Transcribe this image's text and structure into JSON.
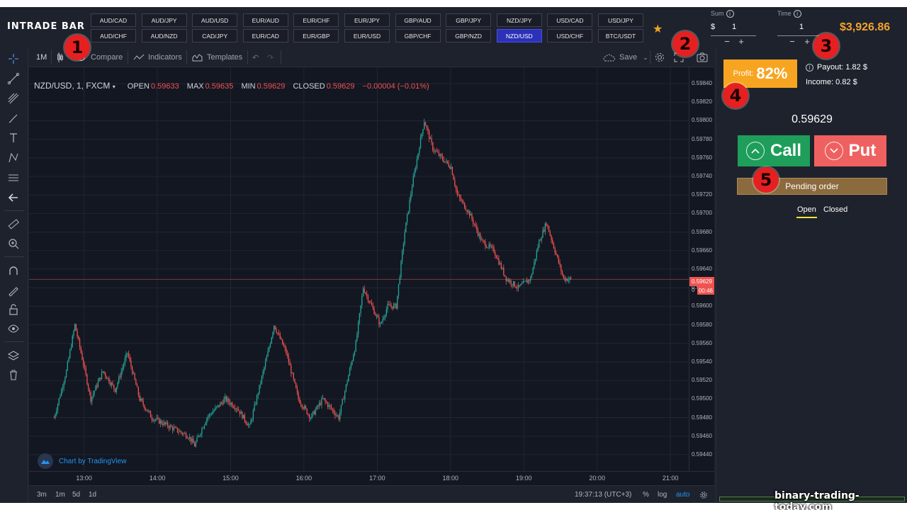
{
  "logo_text": "INTRADE BAR",
  "pairs": [
    {
      "label": "AUD/CAD",
      "active": false
    },
    {
      "label": "AUD/JPY",
      "active": false
    },
    {
      "label": "AUD/USD",
      "active": false
    },
    {
      "label": "EUR/AUD",
      "active": false
    },
    {
      "label": "EUR/CHF",
      "active": false
    },
    {
      "label": "EUR/JPY",
      "active": false
    },
    {
      "label": "GBP/AUD",
      "active": false
    },
    {
      "label": "GBP/JPY",
      "active": false
    },
    {
      "label": "NZD/JPY",
      "active": false
    },
    {
      "label": "USD/CAD",
      "active": false
    },
    {
      "label": "USD/JPY",
      "active": false
    },
    {
      "label": "AUD/CHF",
      "active": false
    },
    {
      "label": "AUD/NZD",
      "active": false
    },
    {
      "label": "CAD/JPY",
      "active": false
    },
    {
      "label": "EUR/CAD",
      "active": false
    },
    {
      "label": "EUR/GBP",
      "active": false
    },
    {
      "label": "EUR/USD",
      "active": false
    },
    {
      "label": "GBP/CHF",
      "active": false
    },
    {
      "label": "GBP/NZD",
      "active": false
    },
    {
      "label": "NZD/USD",
      "active": true
    },
    {
      "label": "USD/CHF",
      "active": false
    },
    {
      "label": "BTC/USDT",
      "active": false
    }
  ],
  "sum": {
    "label": "Sum",
    "currency": "$",
    "value": "1",
    "minus": "−",
    "plus": "+"
  },
  "time": {
    "label": "Time",
    "value": "1",
    "minus": "−",
    "plus": "+"
  },
  "balance": "$3,926.86",
  "toolbar": {
    "interval": "1M",
    "compare": "Compare",
    "indicators": "Indicators",
    "templates": "Templates",
    "save": "Save"
  },
  "legend": {
    "symbol": "NZD/USD, 1, FXCM",
    "open_label": "OPEN",
    "open": "0.59633",
    "max_label": "MAX",
    "max": "0.59635",
    "min_label": "MIN",
    "min": "0.59629",
    "closed_label": "CLOSED",
    "closed": "0.59629",
    "change": "−0.00004 (−0.01%)"
  },
  "watermark": "Chart by TradingView",
  "current_price_label": "0.59629",
  "countdown": "00:46",
  "countdown_prefix": "0",
  "bottom": {
    "ranges": [
      "3m",
      "1m",
      "5d",
      "1d"
    ],
    "clock": "19:37:13 (UTC+3)",
    "percent": "%",
    "log": "log",
    "auto": "auto"
  },
  "chart_data": {
    "type": "candlestick",
    "symbol": "NZD/USD",
    "interval": "1",
    "source": "FXCM",
    "y_ticks": [
      "0.59840",
      "0.59820",
      "0.59800",
      "0.59780",
      "0.59760",
      "0.59740",
      "0.59720",
      "0.59700",
      "0.59680",
      "0.59660",
      "0.59640",
      "0.59620",
      "0.59600",
      "0.59580",
      "0.59560",
      "0.59540",
      "0.59520",
      "0.59500",
      "0.59480",
      "0.59460",
      "0.59440"
    ],
    "x_ticks": [
      "13:00",
      "14:00",
      "15:00",
      "16:00",
      "17:00",
      "18:00",
      "19:00",
      "20:00",
      "21:00"
    ],
    "ylim": [
      0.5943,
      0.5985
    ],
    "current_price": 0.59629,
    "close_path": [
      [
        "12:35",
        0.5948
      ],
      [
        "12:45",
        0.5953
      ],
      [
        "12:52",
        0.5958
      ],
      [
        "12:57",
        0.5955
      ],
      [
        "13:05",
        0.595
      ],
      [
        "13:15",
        0.5953
      ],
      [
        "13:25",
        0.5951
      ],
      [
        "13:35",
        0.5955
      ],
      [
        "13:45",
        0.595
      ],
      [
        "13:55",
        0.5948
      ],
      [
        "14:10",
        0.5947
      ],
      [
        "14:25",
        0.5946
      ],
      [
        "14:30",
        0.5945
      ],
      [
        "14:40",
        0.5948
      ],
      [
        "14:55",
        0.595
      ],
      [
        "15:05",
        0.5949
      ],
      [
        "15:15",
        0.5947
      ],
      [
        "15:30",
        0.5955
      ],
      [
        "15:35",
        0.5958
      ],
      [
        "15:45",
        0.5955
      ],
      [
        "15:55",
        0.595
      ],
      [
        "16:05",
        0.5948
      ],
      [
        "16:15",
        0.595
      ],
      [
        "16:28",
        0.5948
      ],
      [
        "16:35",
        0.5952
      ],
      [
        "16:42",
        0.5956
      ],
      [
        "16:48",
        0.5962
      ],
      [
        "16:55",
        0.596
      ],
      [
        "17:02",
        0.5958
      ],
      [
        "17:08",
        0.596
      ],
      [
        "17:15",
        0.596
      ],
      [
        "17:22",
        0.5968
      ],
      [
        "17:28",
        0.5973
      ],
      [
        "17:35",
        0.5978
      ],
      [
        "17:38",
        0.598
      ],
      [
        "17:45",
        0.5977
      ],
      [
        "17:52",
        0.5976
      ],
      [
        "18:00",
        0.5975
      ],
      [
        "18:05",
        0.5972
      ],
      [
        "18:15",
        0.597
      ],
      [
        "18:25",
        0.5967
      ],
      [
        "18:35",
        0.5966
      ],
      [
        "18:45",
        0.5963
      ],
      [
        "18:55",
        0.5962
      ],
      [
        "19:05",
        0.5963
      ],
      [
        "19:12",
        0.5967
      ],
      [
        "19:18",
        0.5969
      ],
      [
        "19:25",
        0.5966
      ],
      [
        "19:32",
        0.5963
      ],
      [
        "19:38",
        0.59629
      ]
    ]
  },
  "right": {
    "profit_label": "Profit:",
    "profit_value": "82%",
    "payout_label": "Payout: 1.82 $",
    "income_label": "Income: 0.82 $",
    "current_price": "0.59629",
    "call_label": "Call",
    "put_label": "Put",
    "pending_label": "Pending order",
    "tab_open": "Open",
    "tab_closed": "Closed"
  },
  "badges": [
    "1",
    "2",
    "3",
    "4",
    "5"
  ],
  "colors": {
    "up": "#26a69a",
    "down": "#ef5350",
    "accent": "#f7a521",
    "call": "#1e9e5a",
    "put": "#ef6160",
    "badge": "#e62020"
  },
  "site_watermark": "binary-trading-today.com"
}
